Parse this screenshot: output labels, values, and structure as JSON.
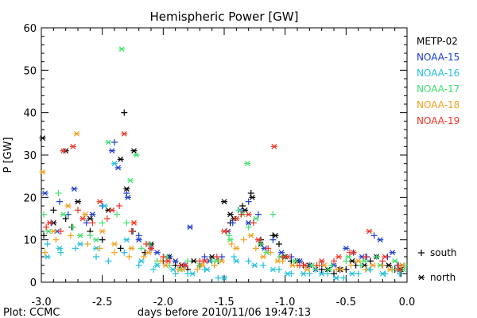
{
  "chart_data": {
    "type": "scatter",
    "title": "Hemispheric Power [GW]",
    "xlabel": "days before 2010/11/06 19:47:13",
    "ylabel": "P [GW]",
    "xlim": [
      -3.0,
      0.0
    ],
    "ylim": [
      0,
      60
    ],
    "x_ticks": [
      "-3.0",
      "-2.5",
      "-2.0",
      "-1.5",
      "-1.0",
      "-0.5",
      "0.0"
    ],
    "y_ticks": [
      "0",
      "10",
      "20",
      "30",
      "40",
      "50",
      "60"
    ],
    "grid": false,
    "legend_position": "right",
    "footer": "Plot: CCMC",
    "marker_legend": [
      {
        "marker": "+",
        "label": "south"
      },
      {
        "marker": "*",
        "label": "north"
      }
    ],
    "series": [
      {
        "name": "METP-02",
        "color": "#000000",
        "south": [
          [
            -2.98,
            11
          ],
          [
            -2.9,
            17
          ],
          [
            -2.8,
            15
          ],
          [
            -2.75,
            13
          ],
          [
            -2.6,
            12
          ],
          [
            -2.5,
            10
          ],
          [
            -2.35,
            8
          ],
          [
            -2.32,
            40
          ],
          [
            -2.25,
            12
          ],
          [
            -2.15,
            7
          ],
          [
            -2.0,
            5
          ],
          [
            -1.9,
            4
          ],
          [
            -1.8,
            3
          ],
          [
            -1.7,
            4
          ],
          [
            -1.55,
            5
          ],
          [
            -1.45,
            14
          ],
          [
            -1.35,
            18
          ],
          [
            -1.28,
            21
          ],
          [
            -1.2,
            10
          ],
          [
            -1.1,
            11
          ],
          [
            -1.05,
            9
          ],
          [
            -0.95,
            5
          ],
          [
            -0.85,
            4
          ],
          [
            -0.7,
            3
          ],
          [
            -0.6,
            2
          ],
          [
            -0.5,
            3
          ],
          [
            -0.42,
            4
          ],
          [
            -0.3,
            5
          ],
          [
            -0.2,
            4
          ],
          [
            -0.1,
            3
          ],
          [
            -0.05,
            2
          ]
        ],
        "north": [
          [
            -2.99,
            34
          ],
          [
            -2.9,
            14
          ],
          [
            -2.8,
            31
          ],
          [
            -2.7,
            19
          ],
          [
            -2.6,
            15
          ],
          [
            -2.45,
            17
          ],
          [
            -2.35,
            29
          ],
          [
            -2.3,
            22
          ],
          [
            -2.24,
            31
          ],
          [
            -2.1,
            9
          ],
          [
            -1.95,
            6
          ],
          [
            -1.85,
            4
          ],
          [
            -1.75,
            5
          ],
          [
            -1.6,
            6
          ],
          [
            -1.5,
            19
          ],
          [
            -1.45,
            16
          ],
          [
            -1.42,
            15
          ],
          [
            -1.33,
            17
          ],
          [
            -1.27,
            20
          ],
          [
            -1.2,
            9
          ],
          [
            -1.08,
            11
          ],
          [
            -1.0,
            6
          ],
          [
            -0.9,
            5
          ],
          [
            -0.8,
            4
          ],
          [
            -0.65,
            3
          ],
          [
            -0.55,
            3
          ],
          [
            -0.45,
            5
          ],
          [
            -0.35,
            4
          ],
          [
            -0.25,
            6
          ],
          [
            -0.15,
            4
          ],
          [
            -0.05,
            3
          ]
        ]
      },
      {
        "name": "NOAA-15",
        "color": "#1a3ccc",
        "south": [
          [
            -2.92,
            14
          ],
          [
            -2.85,
            19
          ],
          [
            -2.78,
            16
          ],
          [
            -2.63,
            14
          ],
          [
            -2.5,
            18
          ],
          [
            -2.4,
            33
          ],
          [
            -2.3,
            21
          ],
          [
            -2.2,
            11
          ],
          [
            -2.1,
            8
          ],
          [
            -1.95,
            6
          ],
          [
            -1.82,
            4
          ],
          [
            -1.66,
            6
          ],
          [
            -1.52,
            6
          ],
          [
            -1.43,
            14
          ],
          [
            -1.3,
            19
          ],
          [
            -1.22,
            16
          ],
          [
            -1.1,
            10
          ],
          [
            -0.95,
            6
          ],
          [
            -0.8,
            4
          ],
          [
            -0.7,
            4
          ],
          [
            -0.55,
            3
          ],
          [
            -0.44,
            7
          ],
          [
            -0.33,
            6
          ],
          [
            -0.27,
            11
          ],
          [
            -0.16,
            6
          ],
          [
            -0.08,
            4
          ]
        ],
        "north": [
          [
            -2.97,
            21
          ],
          [
            -2.87,
            12
          ],
          [
            -2.73,
            22
          ],
          [
            -2.58,
            16
          ],
          [
            -2.42,
            31
          ],
          [
            -2.37,
            27
          ],
          [
            -2.29,
            20
          ],
          [
            -2.2,
            10
          ],
          [
            -2.05,
            7
          ],
          [
            -1.9,
            5
          ],
          [
            -1.78,
            13
          ],
          [
            -1.62,
            5
          ],
          [
            -1.47,
            12
          ],
          [
            -1.37,
            17
          ],
          [
            -1.3,
            14
          ],
          [
            -1.17,
            8
          ],
          [
            -1.03,
            7
          ],
          [
            -0.88,
            5
          ],
          [
            -0.75,
            3
          ],
          [
            -0.6,
            4
          ],
          [
            -0.5,
            8
          ],
          [
            -0.37,
            6
          ],
          [
            -0.22,
            10
          ],
          [
            -0.12,
            7
          ],
          [
            -0.04,
            4
          ]
        ]
      },
      {
        "name": "NOAA-16",
        "color": "#22bfe0",
        "south": [
          [
            -2.95,
            9
          ],
          [
            -2.84,
            7
          ],
          [
            -2.72,
            8
          ],
          [
            -2.55,
            6
          ],
          [
            -2.45,
            5
          ],
          [
            -2.32,
            7
          ],
          [
            -2.2,
            4
          ],
          [
            -2.08,
            3
          ],
          [
            -1.9,
            2
          ],
          [
            -1.8,
            2
          ],
          [
            -1.66,
            3
          ],
          [
            -1.55,
            1
          ],
          [
            -1.42,
            6
          ],
          [
            -1.3,
            5
          ],
          [
            -1.18,
            4
          ],
          [
            -1.05,
            3
          ],
          [
            -0.95,
            2
          ],
          [
            -0.8,
            2
          ],
          [
            -0.65,
            2
          ],
          [
            -0.52,
            1
          ],
          [
            -0.4,
            2
          ],
          [
            -0.3,
            3
          ],
          [
            -0.18,
            2
          ],
          [
            -0.06,
            2
          ]
        ],
        "north": [
          [
            -2.95,
            6
          ],
          [
            -2.85,
            8
          ],
          [
            -2.68,
            9
          ],
          [
            -2.55,
            8
          ],
          [
            -2.48,
            18
          ],
          [
            -2.4,
            28
          ],
          [
            -2.3,
            10
          ],
          [
            -2.18,
            5
          ],
          [
            -2.05,
            4
          ],
          [
            -1.92,
            3
          ],
          [
            -1.76,
            2
          ],
          [
            -1.64,
            3
          ],
          [
            -1.5,
            1
          ],
          [
            -1.4,
            5
          ],
          [
            -1.25,
            4
          ],
          [
            -1.1,
            3
          ],
          [
            -0.98,
            2
          ],
          [
            -0.85,
            2
          ],
          [
            -0.7,
            2
          ],
          [
            -0.58,
            1
          ],
          [
            -0.45,
            2
          ],
          [
            -0.32,
            3
          ],
          [
            -0.2,
            2
          ],
          [
            -0.08,
            3
          ]
        ]
      },
      {
        "name": "NOAA-17",
        "color": "#40e070",
        "south": [
          [
            -2.98,
            16
          ],
          [
            -2.86,
            21
          ],
          [
            -2.74,
            13
          ],
          [
            -2.6,
            11
          ],
          [
            -2.5,
            14
          ],
          [
            -2.38,
            16
          ],
          [
            -2.3,
            14
          ],
          [
            -2.18,
            8
          ],
          [
            -2.05,
            5
          ],
          [
            -1.95,
            4
          ],
          [
            -1.8,
            5
          ],
          [
            -1.6,
            5
          ],
          [
            -1.46,
            11
          ],
          [
            -1.38,
            17
          ],
          [
            -1.3,
            13
          ],
          [
            -1.2,
            9
          ],
          [
            -1.1,
            16
          ],
          [
            -1.0,
            6
          ],
          [
            -0.9,
            4
          ],
          [
            -0.75,
            3
          ],
          [
            -0.62,
            4
          ],
          [
            -0.5,
            5
          ],
          [
            -0.38,
            4
          ],
          [
            -0.25,
            6
          ],
          [
            -0.12,
            3
          ],
          [
            -0.02,
            4
          ]
        ],
        "north": [
          [
            -2.94,
            12
          ],
          [
            -2.82,
            16
          ],
          [
            -2.68,
            11
          ],
          [
            -2.55,
            10
          ],
          [
            -2.45,
            33
          ],
          [
            -2.34,
            55
          ],
          [
            -2.27,
            24
          ],
          [
            -2.22,
            30
          ],
          [
            -2.12,
            9
          ],
          [
            -1.98,
            6
          ],
          [
            -1.86,
            3
          ],
          [
            -1.7,
            4
          ],
          [
            -1.56,
            5
          ],
          [
            -1.45,
            10
          ],
          [
            -1.35,
            16
          ],
          [
            -1.31,
            28
          ],
          [
            -1.24,
            15
          ],
          [
            -1.15,
            7
          ],
          [
            -1.04,
            6
          ],
          [
            -0.92,
            5
          ],
          [
            -0.78,
            4
          ],
          [
            -0.64,
            3
          ],
          [
            -0.48,
            6
          ],
          [
            -0.35,
            5
          ],
          [
            -0.22,
            4
          ],
          [
            -0.1,
            5
          ],
          [
            -0.03,
            3
          ]
        ]
      },
      {
        "name": "NOAA-18",
        "color": "#f0a020",
        "south": [
          [
            -2.97,
            7
          ],
          [
            -2.88,
            10
          ],
          [
            -2.76,
            11
          ],
          [
            -2.62,
            9
          ],
          [
            -2.52,
            8
          ],
          [
            -2.4,
            7
          ],
          [
            -2.28,
            6
          ],
          [
            -2.16,
            6
          ],
          [
            -2.02,
            5
          ],
          [
            -1.88,
            3
          ],
          [
            -1.72,
            3
          ],
          [
            -1.58,
            4
          ],
          [
            -1.44,
            9
          ],
          [
            -1.34,
            10
          ],
          [
            -1.24,
            8
          ],
          [
            -1.12,
            7
          ],
          [
            -1.02,
            5
          ],
          [
            -0.9,
            4
          ],
          [
            -0.72,
            4
          ],
          [
            -0.58,
            3
          ],
          [
            -0.46,
            4
          ],
          [
            -0.34,
            3
          ],
          [
            -0.2,
            4
          ],
          [
            -0.08,
            3
          ]
        ],
        "north": [
          [
            -2.99,
            26
          ],
          [
            -2.9,
            12
          ],
          [
            -2.78,
            18
          ],
          [
            -2.71,
            35
          ],
          [
            -2.64,
            16
          ],
          [
            -2.5,
            12
          ],
          [
            -2.4,
            9
          ],
          [
            -2.26,
            8
          ],
          [
            -2.12,
            7
          ],
          [
            -1.98,
            4
          ],
          [
            -1.84,
            3
          ],
          [
            -1.68,
            4
          ],
          [
            -1.52,
            5
          ],
          [
            -1.4,
            8
          ],
          [
            -1.28,
            11
          ],
          [
            -1.18,
            6
          ],
          [
            -1.06,
            5
          ],
          [
            -0.94,
            4
          ],
          [
            -0.82,
            3
          ],
          [
            -0.68,
            4
          ],
          [
            -0.54,
            3
          ],
          [
            -0.4,
            5
          ],
          [
            -0.28,
            4
          ],
          [
            -0.14,
            3
          ],
          [
            -0.04,
            4
          ]
        ]
      },
      {
        "name": "NOAA-19",
        "color": "#ee3322",
        "south": [
          [
            -2.96,
            13
          ],
          [
            -2.84,
            12
          ],
          [
            -2.7,
            17
          ],
          [
            -2.58,
            14
          ],
          [
            -2.46,
            15
          ],
          [
            -2.36,
            18
          ],
          [
            -2.26,
            12
          ],
          [
            -2.14,
            9
          ],
          [
            -2.0,
            6
          ],
          [
            -1.86,
            4
          ],
          [
            -1.7,
            5
          ],
          [
            -1.56,
            6
          ],
          [
            -1.48,
            12
          ],
          [
            -1.36,
            16
          ],
          [
            -1.26,
            14
          ],
          [
            -1.14,
            8
          ],
          [
            -1.02,
            6
          ],
          [
            -0.88,
            4
          ],
          [
            -0.74,
            4
          ],
          [
            -0.6,
            5
          ],
          [
            -0.47,
            7
          ],
          [
            -0.34,
            6
          ],
          [
            -0.2,
            5
          ],
          [
            -0.07,
            4
          ]
        ],
        "north": [
          [
            -2.93,
            14
          ],
          [
            -2.82,
            31
          ],
          [
            -2.74,
            32
          ],
          [
            -2.66,
            15
          ],
          [
            -2.52,
            19
          ],
          [
            -2.42,
            17
          ],
          [
            -2.32,
            35
          ],
          [
            -2.24,
            14
          ],
          [
            -2.1,
            8
          ],
          [
            -1.96,
            5
          ],
          [
            -1.82,
            4
          ],
          [
            -1.66,
            5
          ],
          [
            -1.5,
            12
          ],
          [
            -1.4,
            15
          ],
          [
            -1.3,
            16
          ],
          [
            -1.22,
            10
          ],
          [
            -1.09,
            32
          ],
          [
            -0.98,
            6
          ],
          [
            -0.84,
            4
          ],
          [
            -0.7,
            5
          ],
          [
            -0.56,
            6
          ],
          [
            -0.44,
            7
          ],
          [
            -0.31,
            12
          ],
          [
            -0.18,
            6
          ],
          [
            -0.06,
            3
          ]
        ]
      }
    ]
  }
}
